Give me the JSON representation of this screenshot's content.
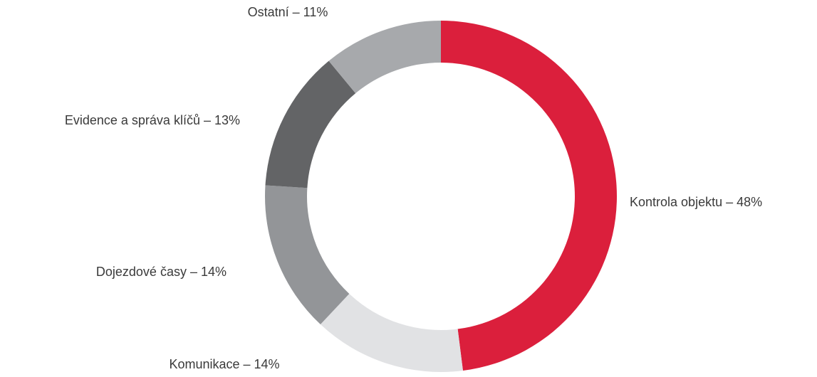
{
  "chart_data": {
    "type": "donut",
    "categories": [
      "Kontrola objektu – 48%",
      "Komunikace – 14%",
      "Dojezdové časy – 14%",
      "Evidence a správa klíčů – 13%",
      "Ostatní – 11%"
    ],
    "values": [
      48,
      14,
      14,
      13,
      11
    ],
    "colors": [
      "#db1f3c",
      "#e1e2e4",
      "#939598",
      "#636466",
      "#a7a9ac"
    ]
  }
}
